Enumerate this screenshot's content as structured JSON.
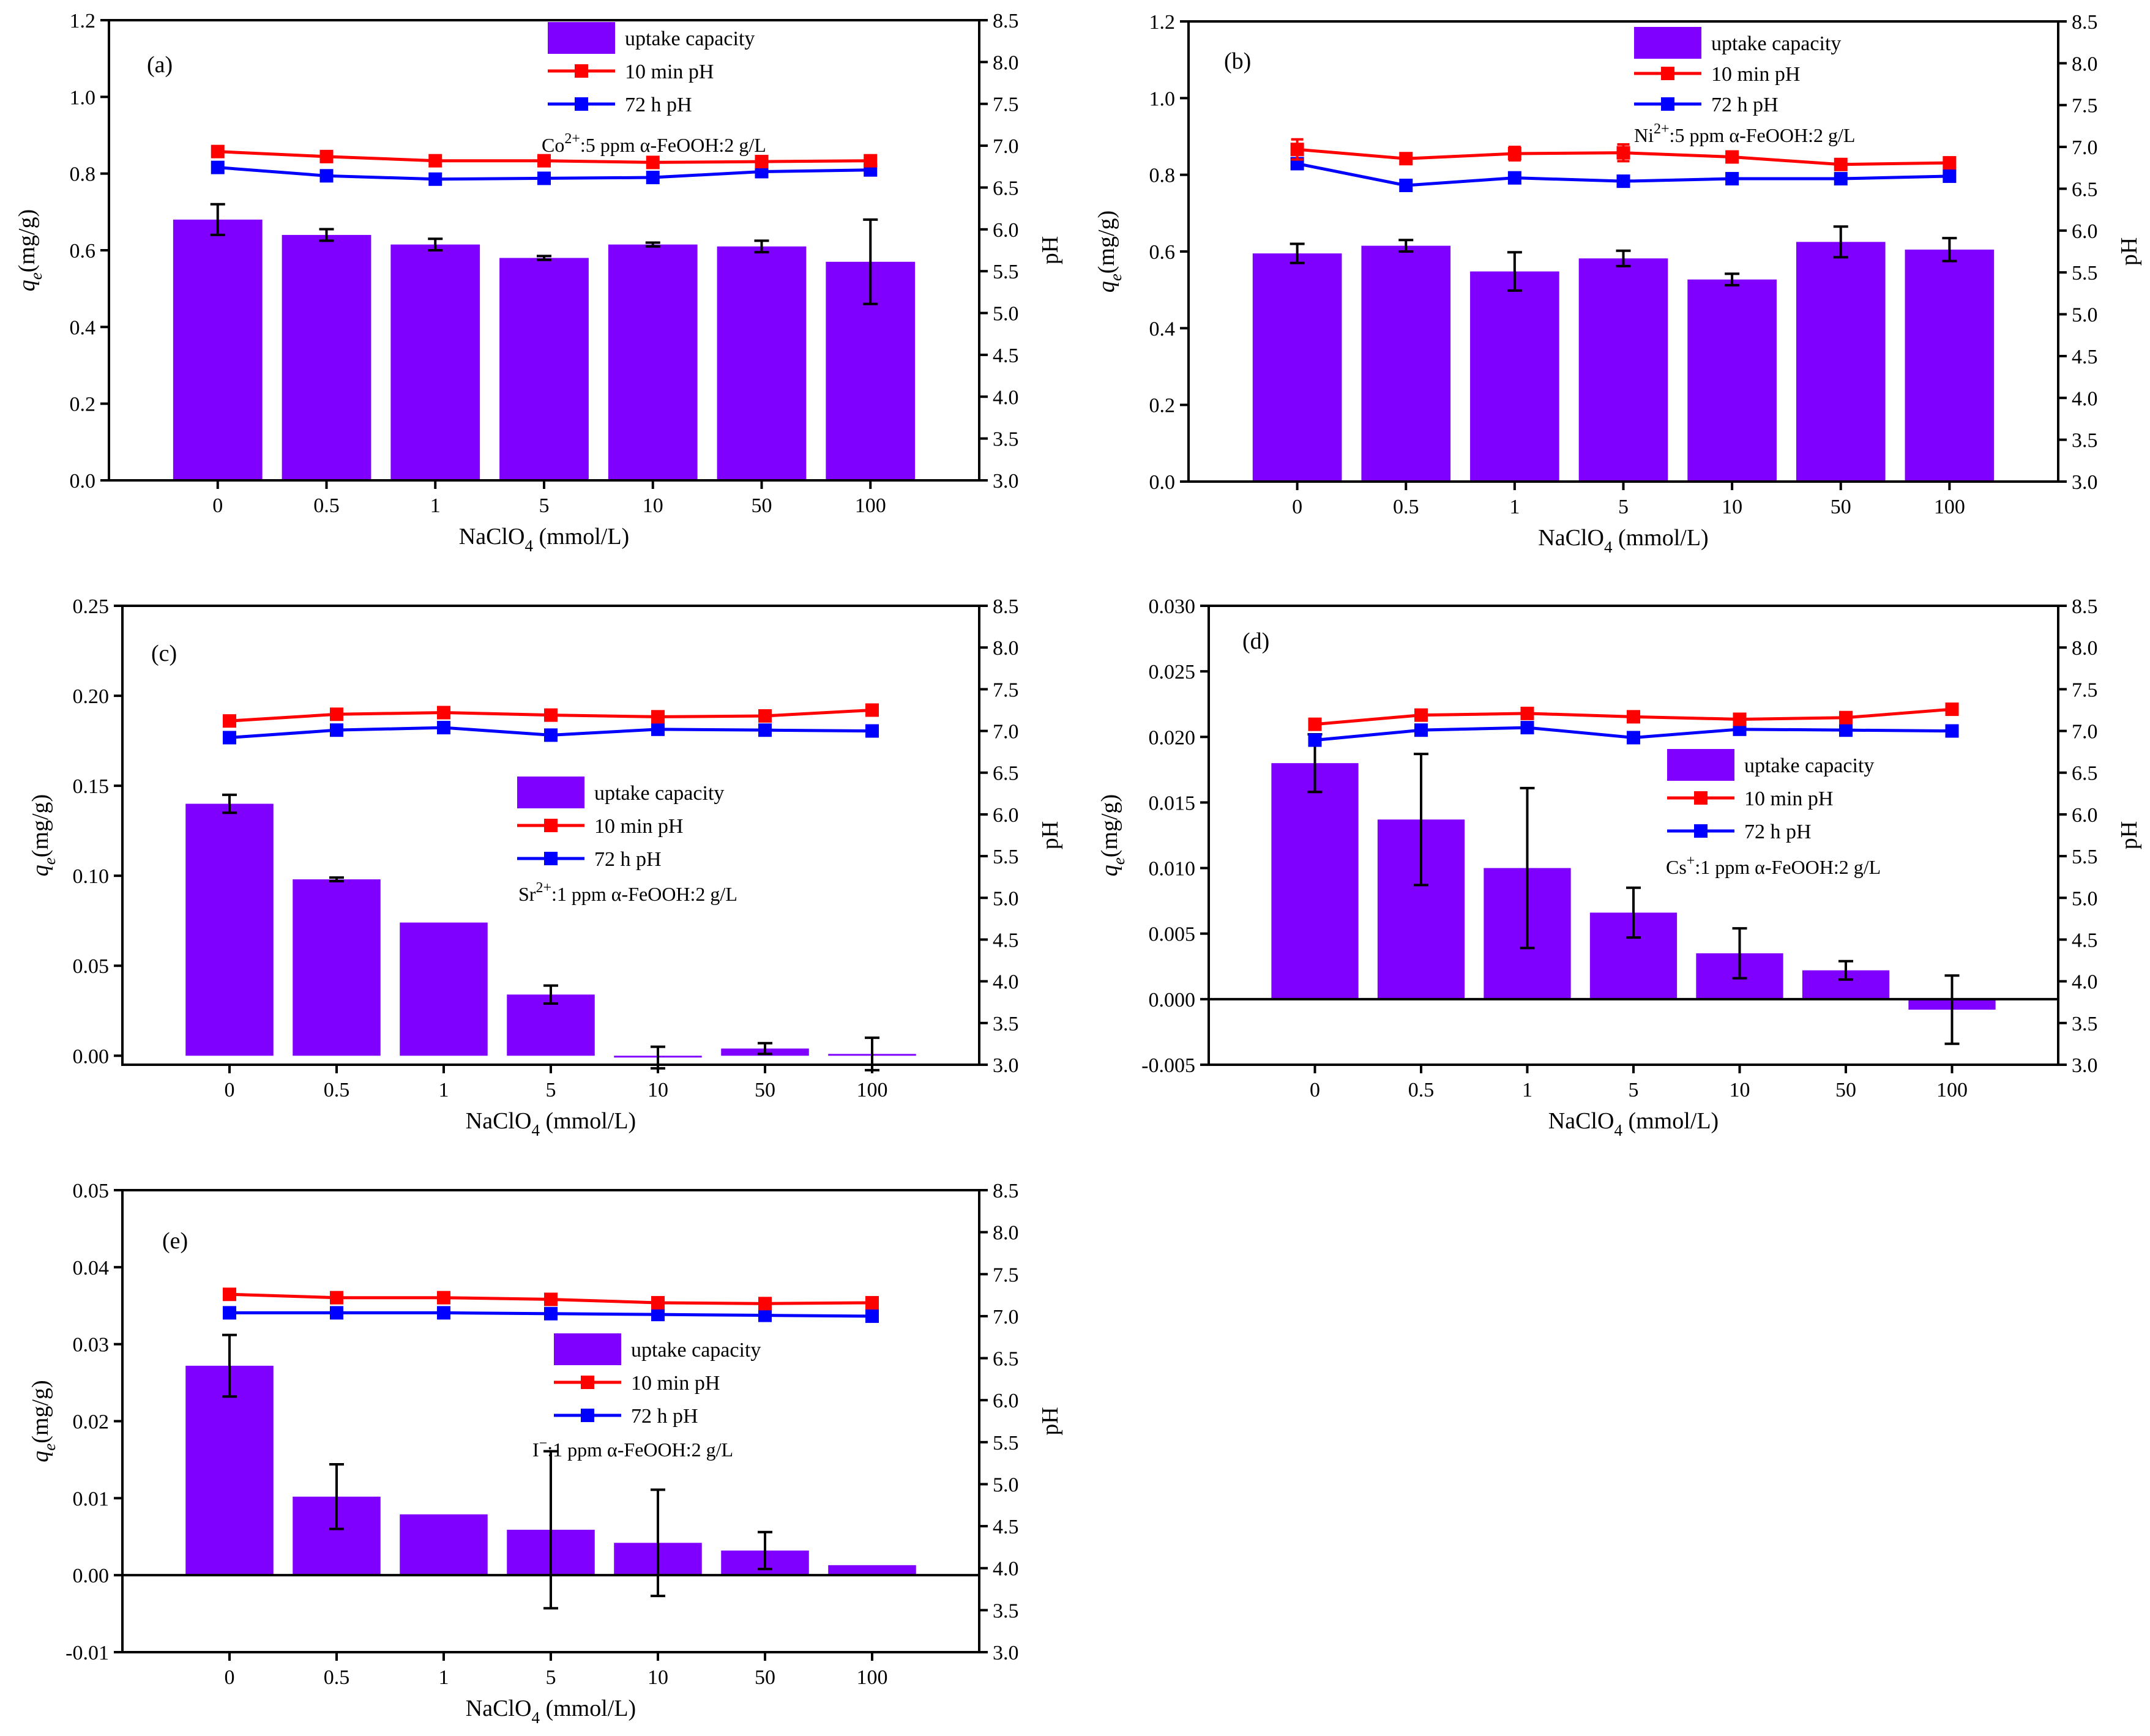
{
  "colors": {
    "bar": "#7f00ff",
    "min10": "#ff0000",
    "h72": "#0000ff",
    "axis": "#000000"
  },
  "chart_data": [
    {
      "id": "a",
      "type": "bar",
      "panel_label": "(a)",
      "categories": [
        "0",
        "0.5",
        "1",
        "5",
        "10",
        "50",
        "100"
      ],
      "xlabel": {
        "main": "NaClO",
        "sub": "4",
        "tail": " (mmol/L)"
      },
      "ylabel": {
        "var": "q",
        "sub": "e",
        "unit": "(mg/g)"
      },
      "y2label": "pH",
      "ylim": [
        0,
        1.2
      ],
      "yticks": [
        "0.0",
        "0.2",
        "0.4",
        "0.6",
        "0.8",
        "1.0",
        "1.2"
      ],
      "y2lim": [
        3.0,
        8.5
      ],
      "y2ticks": [
        "3.0",
        "3.5",
        "4.0",
        "4.5",
        "5.0",
        "5.5",
        "6.0",
        "6.5",
        "7.0",
        "7.5",
        "8.0",
        "8.5"
      ],
      "zero_line": false,
      "series": [
        {
          "name": "uptake capacity",
          "kind": "bar",
          "values": [
            0.68,
            0.64,
            0.615,
            0.58,
            0.615,
            0.61,
            0.57
          ],
          "errors": [
            0.04,
            0.015,
            0.015,
            0.005,
            0.005,
            0.015,
            0.11
          ]
        },
        {
          "name": "10 min pH",
          "kind": "line",
          "values": [
            6.93,
            6.87,
            6.82,
            6.82,
            6.8,
            6.81,
            6.82
          ],
          "errors": [
            0.02,
            0.01,
            0.01,
            0.01,
            0.01,
            0.01,
            0.01
          ]
        },
        {
          "name": "72 h pH",
          "kind": "line",
          "values": [
            6.74,
            6.64,
            6.6,
            6.61,
            6.62,
            6.69,
            6.71
          ],
          "errors": [
            0.05,
            0.01,
            0.01,
            0.01,
            0.01,
            0.01,
            0.02
          ]
        }
      ],
      "legend_entries": [
        "uptake capacity",
        "10 min pH",
        "72 h pH"
      ],
      "annotation": {
        "ion": "Co",
        "sup": "2+",
        "rest": ":5 ppm α-FeOOH:2 g/L"
      }
    },
    {
      "id": "b",
      "type": "bar",
      "panel_label": "(b)",
      "categories": [
        "0",
        "0.5",
        "1",
        "5",
        "10",
        "50",
        "100"
      ],
      "xlabel": {
        "main": "NaClO",
        "sub": "4",
        "tail": " (mmol/L)"
      },
      "ylabel": {
        "var": "q",
        "sub": "e",
        "unit": "(mg/g)"
      },
      "y2label": "pH",
      "ylim": [
        0,
        1.2
      ],
      "yticks": [
        "0.0",
        "0.2",
        "0.4",
        "0.6",
        "0.8",
        "1.0",
        "1.2"
      ],
      "y2lim": [
        3.0,
        8.5
      ],
      "y2ticks": [
        "3.0",
        "3.5",
        "4.0",
        "4.5",
        "5.0",
        "5.5",
        "6.0",
        "6.5",
        "7.0",
        "7.5",
        "8.0",
        "8.5"
      ],
      "zero_line": false,
      "series": [
        {
          "name": "uptake capacity",
          "kind": "bar",
          "values": [
            0.595,
            0.615,
            0.548,
            0.582,
            0.527,
            0.625,
            0.605
          ],
          "errors": [
            0.025,
            0.015,
            0.05,
            0.02,
            0.015,
            0.04,
            0.03
          ]
        },
        {
          "name": "10 min pH",
          "kind": "line",
          "values": [
            6.97,
            6.86,
            6.92,
            6.93,
            6.88,
            6.79,
            6.81
          ],
          "errors": [
            0.12,
            0.01,
            0.08,
            0.1,
            0.06,
            0.01,
            0.01
          ]
        },
        {
          "name": "72 h pH",
          "kind": "line",
          "values": [
            6.8,
            6.54,
            6.63,
            6.59,
            6.62,
            6.62,
            6.65
          ],
          "errors": [
            0.01,
            0.01,
            0.04,
            0.01,
            0.01,
            0.01,
            0.03
          ]
        }
      ],
      "legend_entries": [
        "uptake capacity",
        "10 min pH",
        "72 h pH"
      ],
      "annotation": {
        "ion": "Ni",
        "sup": "2+",
        "rest": ":5 ppm α-FeOOH:2 g/L"
      }
    },
    {
      "id": "c",
      "type": "bar",
      "panel_label": "(c)",
      "categories": [
        "0",
        "0.5",
        "1",
        "5",
        "10",
        "50",
        "100"
      ],
      "xlabel": {
        "main": "NaClO",
        "sub": "4",
        "tail": " (mmol/L)"
      },
      "ylabel": {
        "var": "q",
        "sub": "e",
        "unit": "(mg/g)"
      },
      "y2label": "pH",
      "ylim": [
        -0.005,
        0.25
      ],
      "yticks": [
        "0.00",
        "0.05",
        "0.10",
        "0.15",
        "0.20",
        "0.25"
      ],
      "y2lim": [
        3.0,
        8.5
      ],
      "y2ticks": [
        "3.0",
        "3.5",
        "4.0",
        "4.5",
        "5.0",
        "5.5",
        "6.0",
        "6.5",
        "7.0",
        "7.5",
        "8.0",
        "8.5"
      ],
      "zero_line": false,
      "series": [
        {
          "name": "uptake capacity",
          "kind": "bar",
          "values": [
            0.14,
            0.098,
            0.074,
            0.034,
            -0.001,
            0.004,
            0.001
          ],
          "errors": [
            0.005,
            0.001,
            0.0,
            0.005,
            0.006,
            0.003,
            0.009
          ]
        },
        {
          "name": "10 min pH",
          "kind": "line",
          "values": [
            7.12,
            7.2,
            7.22,
            7.19,
            7.17,
            7.18,
            7.25
          ],
          "errors": [
            0.06,
            0.02,
            0.01,
            0.01,
            0.01,
            0.01,
            0.01
          ]
        },
        {
          "name": "72 h pH",
          "kind": "line",
          "values": [
            6.92,
            7.01,
            7.04,
            6.95,
            7.02,
            7.01,
            7.0
          ],
          "errors": [
            0.02,
            0.01,
            0.01,
            0.01,
            0.01,
            0.01,
            0.01
          ]
        }
      ],
      "legend_entries": [
        "uptake capacity",
        "10 min pH",
        "72 h pH"
      ],
      "annotation": {
        "ion": "Sr",
        "sup": "2+",
        "rest": ":1 ppm α-FeOOH:2 g/L"
      }
    },
    {
      "id": "d",
      "type": "bar",
      "panel_label": "(d)",
      "categories": [
        "0",
        "0.5",
        "1",
        "5",
        "10",
        "50",
        "100"
      ],
      "xlabel": {
        "main": "NaClO",
        "sub": "4",
        "tail": " (mmol/L)"
      },
      "ylabel": {
        "var": "q",
        "sub": "e",
        "unit": "(mg/g)"
      },
      "y2label": "pH",
      "ylim": [
        -0.005,
        0.03
      ],
      "yticks": [
        "-0.005",
        "0.000",
        "0.005",
        "0.010",
        "0.015",
        "0.020",
        "0.025",
        "0.030"
      ],
      "y2lim": [
        3.0,
        8.5
      ],
      "y2ticks": [
        "3.0",
        "3.5",
        "4.0",
        "4.5",
        "5.0",
        "5.5",
        "6.0",
        "6.5",
        "7.0",
        "7.5",
        "8.0",
        "8.5"
      ],
      "zero_line": true,
      "series": [
        {
          "name": "uptake capacity",
          "kind": "bar",
          "values": [
            0.018,
            0.0137,
            0.01,
            0.0066,
            0.0035,
            0.0022,
            -0.0008
          ],
          "errors": [
            0.0022,
            0.005,
            0.0061,
            0.0019,
            0.0019,
            0.0007,
            0.0026
          ]
        },
        {
          "name": "10 min pH",
          "kind": "line",
          "values": [
            7.08,
            7.19,
            7.21,
            7.17,
            7.14,
            7.16,
            7.26
          ],
          "errors": [
            0.06,
            0.02,
            0.01,
            0.01,
            0.01,
            0.01,
            0.01
          ]
        },
        {
          "name": "72 h pH",
          "kind": "line",
          "values": [
            6.89,
            7.01,
            7.04,
            6.92,
            7.02,
            7.01,
            7.0
          ],
          "errors": [
            0.01,
            0.01,
            0.01,
            0.01,
            0.01,
            0.01,
            0.01
          ]
        }
      ],
      "legend_entries": [
        "uptake capacity",
        "10 min pH",
        "72 h pH"
      ],
      "annotation": {
        "ion": "Cs",
        "sup": "+",
        "rest": ":1 ppm α-FeOOH:2 g/L"
      }
    },
    {
      "id": "e",
      "type": "bar",
      "panel_label": "(e)",
      "categories": [
        "0",
        "0.5",
        "1",
        "5",
        "10",
        "50",
        "100"
      ],
      "xlabel": {
        "main": "NaClO",
        "sub": "4",
        "tail": " (mmol/L)"
      },
      "ylabel": {
        "var": "q",
        "sub": "e",
        "unit": "(mg/g)"
      },
      "y2label": "pH",
      "ylim": [
        -0.01,
        0.05
      ],
      "yticks": [
        "-0.01",
        "0.00",
        "0.01",
        "0.02",
        "0.03",
        "0.04",
        "0.05"
      ],
      "y2lim": [
        3.0,
        8.5
      ],
      "y2ticks": [
        "3.0",
        "3.5",
        "4.0",
        "4.5",
        "5.0",
        "5.5",
        "6.0",
        "6.5",
        "7.0",
        "7.5",
        "8.0",
        "8.5"
      ],
      "zero_line": true,
      "series": [
        {
          "name": "uptake capacity",
          "kind": "bar",
          "values": [
            0.0272,
            0.0102,
            0.0079,
            0.0059,
            0.0042,
            0.0032,
            0.0013
          ],
          "errors": [
            0.004,
            0.0042,
            0.0,
            0.0102,
            0.0069,
            0.0024,
            0.0
          ]
        },
        {
          "name": "10 min pH",
          "kind": "line",
          "values": [
            7.26,
            7.22,
            7.22,
            7.2,
            7.16,
            7.15,
            7.16
          ],
          "errors": [
            0.01,
            0.01,
            0.01,
            0.01,
            0.01,
            0.01,
            0.01
          ]
        },
        {
          "name": "72 h pH",
          "kind": "line",
          "values": [
            7.04,
            7.04,
            7.04,
            7.03,
            7.02,
            7.01,
            7.0
          ],
          "errors": [
            0.01,
            0.01,
            0.01,
            0.01,
            0.01,
            0.01,
            0.01
          ]
        }
      ],
      "legend_entries": [
        "uptake capacity",
        "10 min pH",
        "72 h pH"
      ],
      "annotation": {
        "ion": "I",
        "sup": "−",
        "rest": ":1 ppm α-FeOOH:2 g/L"
      }
    }
  ]
}
